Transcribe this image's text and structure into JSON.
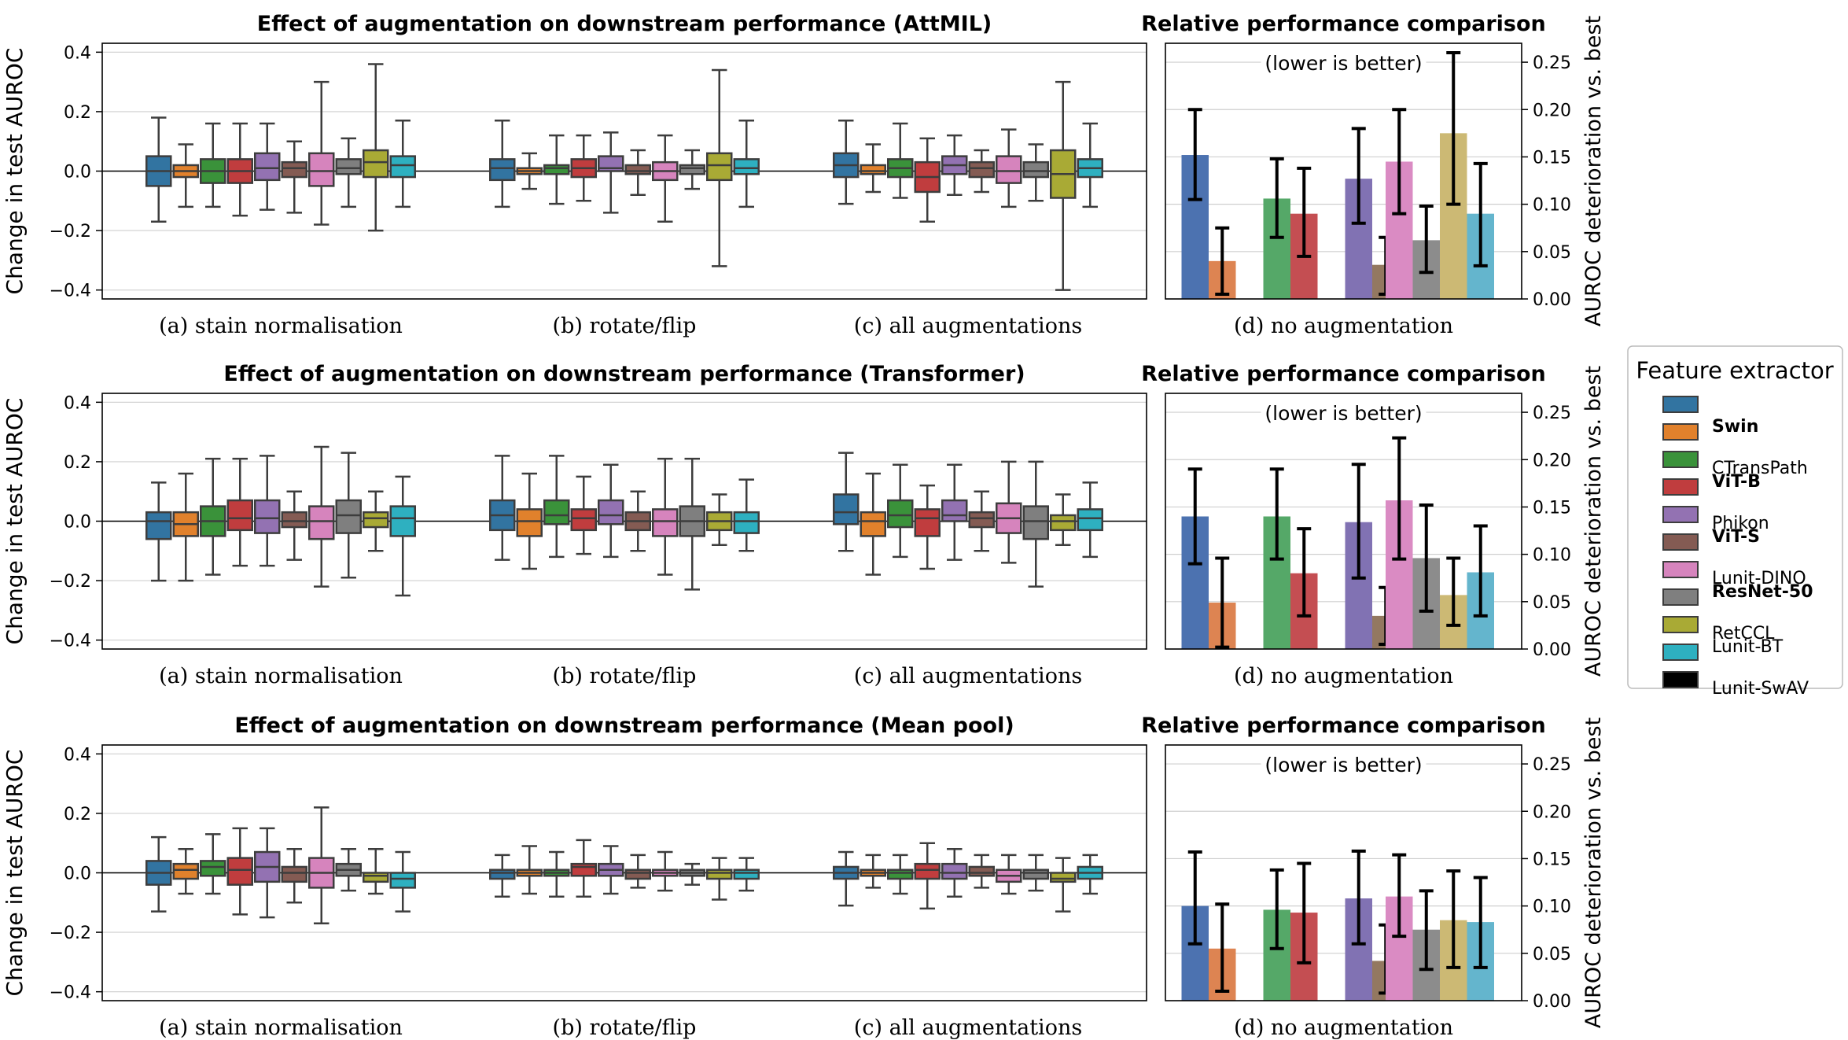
{
  "colors": [
    "#3274a1",
    "#e1812c",
    "#3a923a",
    "#c03d3e",
    "#9372b2",
    "#845b53",
    "#d684bd",
    "#7f7f7f",
    "#a9aa35",
    "#2eb0c0"
  ],
  "bar_colors": [
    "#4c72b0",
    "#dd8452",
    "#55a868",
    "#c44e52",
    "#8172b3",
    "#937860",
    "#da8bc3",
    "#8c8c8c",
    "#ccb974",
    "#64b5cd"
  ],
  "legend": {
    "title": "Feature extractor",
    "items": [
      {
        "label": "",
        "bold": false
      },
      {
        "label": "Swin",
        "bold": true
      },
      {
        "label": "CTransPath",
        "bold": false
      },
      {
        "label": "ViT-B",
        "bold": true
      },
      {
        "label": "Phikon",
        "bold": false
      },
      {
        "label": "ViT-S",
        "bold": true
      },
      {
        "label": "Lunit-DINO",
        "bold": false
      },
      {
        "label": "ResNet-50",
        "bold": true
      },
      {
        "label": "RetCCL",
        "bold": false
      },
      {
        "label": "Lunit-BT",
        "bold": false
      },
      {
        "label": "Lunit-SwAV",
        "bold": false
      }
    ]
  },
  "chart_data": [
    {
      "type": "box",
      "title": "Effect of augmentation on downstream performance (AttMIL)",
      "ylabel": "Change in test AUROC",
      "ylim": [
        -0.43,
        0.43
      ],
      "yticks": [
        -0.4,
        -0.2,
        0.0,
        0.2,
        0.4
      ],
      "ytick_labels": [
        "−0.4",
        "−0.2",
        "0.0",
        "0.2",
        "0.4"
      ],
      "categories": [
        "(a) stain normalisation",
        "(b) rotate/flip",
        "(c) all augmentations"
      ],
      "boxes": [
        [
          [
            -0.17,
            -0.05,
            0.0,
            0.05,
            0.18
          ],
          [
            -0.12,
            -0.02,
            0.0,
            0.02,
            0.09
          ],
          [
            -0.12,
            -0.04,
            0.0,
            0.04,
            0.16
          ],
          [
            -0.15,
            -0.04,
            0.0,
            0.04,
            0.16
          ],
          [
            -0.13,
            -0.03,
            0.01,
            0.06,
            0.16
          ],
          [
            -0.14,
            -0.02,
            0.01,
            0.03,
            0.1
          ],
          [
            -0.18,
            -0.05,
            0.0,
            0.06,
            0.3
          ],
          [
            -0.12,
            -0.01,
            0.01,
            0.04,
            0.11
          ],
          [
            -0.2,
            -0.02,
            0.03,
            0.07,
            0.36
          ],
          [
            -0.12,
            -0.02,
            0.02,
            0.05,
            0.17
          ]
        ],
        [
          [
            -0.12,
            -0.03,
            0.01,
            0.04,
            0.17
          ],
          [
            -0.06,
            -0.01,
            0.0,
            0.01,
            0.06
          ],
          [
            -0.11,
            -0.01,
            0.01,
            0.02,
            0.12
          ],
          [
            -0.1,
            -0.02,
            0.01,
            0.04,
            0.12
          ],
          [
            -0.14,
            0.0,
            0.01,
            0.05,
            0.13
          ],
          [
            -0.08,
            -0.01,
            0.0,
            0.02,
            0.07
          ],
          [
            -0.17,
            -0.03,
            0.0,
            0.03,
            0.12
          ],
          [
            -0.06,
            -0.01,
            0.01,
            0.02,
            0.07
          ],
          [
            -0.32,
            -0.03,
            0.02,
            0.06,
            0.34
          ],
          [
            -0.12,
            -0.01,
            0.01,
            0.04,
            0.17
          ]
        ],
        [
          [
            -0.11,
            -0.02,
            0.02,
            0.06,
            0.17
          ],
          [
            -0.07,
            -0.01,
            0.0,
            0.02,
            0.09
          ],
          [
            -0.09,
            -0.02,
            0.01,
            0.04,
            0.16
          ],
          [
            -0.17,
            -0.07,
            -0.02,
            0.03,
            0.11
          ],
          [
            -0.08,
            -0.01,
            0.02,
            0.05,
            0.12
          ],
          [
            -0.07,
            -0.02,
            0.01,
            0.03,
            0.07
          ],
          [
            -0.12,
            -0.04,
            0.0,
            0.05,
            0.14
          ],
          [
            -0.1,
            -0.02,
            0.0,
            0.03,
            0.09
          ],
          [
            -0.4,
            -0.09,
            -0.01,
            0.07,
            0.3
          ],
          [
            -0.12,
            -0.02,
            0.01,
            0.04,
            0.16
          ]
        ]
      ]
    },
    {
      "type": "bar",
      "title": "Relative performance comparison",
      "annotation": "(lower is better)",
      "xlabel": "(d) no augmentation",
      "ylabel": "AUROC deterioration vs. best",
      "ylim": [
        0.0,
        0.27
      ],
      "yticks": [
        0.0,
        0.05,
        0.1,
        0.15,
        0.2,
        0.25
      ],
      "ytick_labels": [
        "0.00",
        "0.05",
        "0.10",
        "0.15",
        "0.20",
        "0.25"
      ],
      "values": [
        0.152,
        0.04,
        0.106,
        0.09,
        0.127,
        0.036,
        0.145,
        0.062,
        0.175,
        0.09
      ],
      "err_low": [
        0.105,
        0.005,
        0.065,
        0.045,
        0.08,
        0.005,
        0.09,
        0.028,
        0.1,
        0.035
      ],
      "err_high": [
        0.2,
        0.075,
        0.148,
        0.138,
        0.18,
        0.065,
        0.2,
        0.098,
        0.26,
        0.143
      ]
    },
    {
      "type": "box",
      "title": "Effect of augmentation on downstream performance (Transformer)",
      "ylabel": "Change in test AUROC",
      "ylim": [
        -0.43,
        0.43
      ],
      "yticks": [
        -0.4,
        -0.2,
        0.0,
        0.2,
        0.4
      ],
      "ytick_labels": [
        "−0.4",
        "−0.2",
        "0.0",
        "0.2",
        "0.4"
      ],
      "categories": [
        "(a) stain normalisation",
        "(b) rotate/flip",
        "(c) all augmentations"
      ],
      "boxes": [
        [
          [
            -0.2,
            -0.06,
            0.0,
            0.03,
            0.13
          ],
          [
            -0.2,
            -0.05,
            -0.01,
            0.03,
            0.16
          ],
          [
            -0.18,
            -0.05,
            0.0,
            0.05,
            0.21
          ],
          [
            -0.15,
            -0.03,
            0.01,
            0.07,
            0.21
          ],
          [
            -0.15,
            -0.04,
            0.01,
            0.07,
            0.22
          ],
          [
            -0.13,
            -0.02,
            0.0,
            0.03,
            0.1
          ],
          [
            -0.22,
            -0.06,
            0.0,
            0.05,
            0.25
          ],
          [
            -0.19,
            -0.04,
            0.02,
            0.07,
            0.23
          ],
          [
            -0.1,
            -0.02,
            0.01,
            0.03,
            0.1
          ],
          [
            -0.25,
            -0.05,
            0.01,
            0.05,
            0.15
          ]
        ],
        [
          [
            -0.13,
            -0.03,
            0.02,
            0.07,
            0.22
          ],
          [
            -0.16,
            -0.05,
            0.0,
            0.04,
            0.16
          ],
          [
            -0.12,
            -0.01,
            0.02,
            0.07,
            0.22
          ],
          [
            -0.11,
            -0.03,
            0.01,
            0.04,
            0.15
          ],
          [
            -0.12,
            -0.01,
            0.02,
            0.07,
            0.19
          ],
          [
            -0.1,
            -0.03,
            0.0,
            0.03,
            0.1
          ],
          [
            -0.18,
            -0.05,
            0.0,
            0.04,
            0.21
          ],
          [
            -0.23,
            -0.05,
            0.0,
            0.05,
            0.21
          ],
          [
            -0.08,
            -0.03,
            0.0,
            0.03,
            0.09
          ],
          [
            -0.1,
            -0.04,
            0.0,
            0.03,
            0.14
          ]
        ],
        [
          [
            -0.1,
            -0.01,
            0.03,
            0.09,
            0.23
          ],
          [
            -0.18,
            -0.05,
            0.0,
            0.03,
            0.16
          ],
          [
            -0.12,
            -0.02,
            0.02,
            0.07,
            0.19
          ],
          [
            -0.16,
            -0.05,
            0.01,
            0.04,
            0.12
          ],
          [
            -0.13,
            0.0,
            0.02,
            0.07,
            0.19
          ],
          [
            -0.1,
            -0.02,
            0.01,
            0.03,
            0.1
          ],
          [
            -0.14,
            -0.04,
            0.01,
            0.06,
            0.2
          ],
          [
            -0.22,
            -0.06,
            0.0,
            0.05,
            0.2
          ],
          [
            -0.08,
            -0.03,
            0.0,
            0.02,
            0.09
          ],
          [
            -0.12,
            -0.03,
            0.01,
            0.04,
            0.13
          ]
        ]
      ]
    },
    {
      "type": "bar",
      "title": "Relative performance comparison",
      "annotation": "(lower is better)",
      "xlabel": "(d) no augmentation",
      "ylabel": "AUROC deterioration vs. best",
      "ylim": [
        0.0,
        0.27
      ],
      "yticks": [
        0.0,
        0.05,
        0.1,
        0.15,
        0.2,
        0.25
      ],
      "ytick_labels": [
        "0.00",
        "0.05",
        "0.10",
        "0.15",
        "0.20",
        "0.25"
      ],
      "values": [
        0.14,
        0.049,
        0.14,
        0.08,
        0.134,
        0.035,
        0.157,
        0.096,
        0.057,
        0.081
      ],
      "err_low": [
        0.09,
        0.002,
        0.095,
        0.035,
        0.075,
        0.005,
        0.095,
        0.04,
        0.025,
        0.035
      ],
      "err_high": [
        0.19,
        0.096,
        0.19,
        0.127,
        0.195,
        0.065,
        0.223,
        0.152,
        0.096,
        0.13
      ]
    },
    {
      "type": "box",
      "title": "Effect of augmentation on downstream performance (Mean pool)",
      "ylabel": "Change in test AUROC",
      "ylim": [
        -0.43,
        0.43
      ],
      "yticks": [
        -0.4,
        -0.2,
        0.0,
        0.2,
        0.4
      ],
      "ytick_labels": [
        "−0.4",
        "−0.2",
        "0.0",
        "0.2",
        "0.4"
      ],
      "categories": [
        "(a) stain normalisation",
        "(b) rotate/flip",
        "(c) all augmentations"
      ],
      "boxes": [
        [
          [
            -0.13,
            -0.04,
            0.0,
            0.04,
            0.12
          ],
          [
            -0.07,
            -0.02,
            0.01,
            0.03,
            0.08
          ],
          [
            -0.07,
            -0.01,
            0.02,
            0.04,
            0.13
          ],
          [
            -0.14,
            -0.04,
            0.01,
            0.05,
            0.15
          ],
          [
            -0.15,
            -0.03,
            0.02,
            0.07,
            0.15
          ],
          [
            -0.1,
            -0.03,
            0.0,
            0.02,
            0.08
          ],
          [
            -0.17,
            -0.05,
            0.0,
            0.05,
            0.22
          ],
          [
            -0.06,
            -0.01,
            0.01,
            0.03,
            0.08
          ],
          [
            -0.07,
            -0.03,
            -0.01,
            0.0,
            0.08
          ],
          [
            -0.13,
            -0.05,
            -0.02,
            0.0,
            0.07
          ]
        ],
        [
          [
            -0.08,
            -0.02,
            0.0,
            0.01,
            0.06
          ],
          [
            -0.07,
            -0.01,
            0.0,
            0.01,
            0.09
          ],
          [
            -0.08,
            -0.01,
            0.0,
            0.01,
            0.07
          ],
          [
            -0.08,
            -0.01,
            0.02,
            0.03,
            0.11
          ],
          [
            -0.07,
            -0.01,
            0.01,
            0.03,
            0.09
          ],
          [
            -0.05,
            -0.02,
            0.0,
            0.01,
            0.06
          ],
          [
            -0.06,
            -0.01,
            0.0,
            0.01,
            0.07
          ],
          [
            -0.04,
            -0.01,
            0.0,
            0.01,
            0.03
          ],
          [
            -0.09,
            -0.02,
            0.0,
            0.01,
            0.05
          ],
          [
            -0.06,
            -0.02,
            0.0,
            0.01,
            0.05
          ]
        ],
        [
          [
            -0.11,
            -0.02,
            0.0,
            0.02,
            0.07
          ],
          [
            -0.05,
            -0.01,
            0.0,
            0.01,
            0.06
          ],
          [
            -0.07,
            -0.02,
            0.0,
            0.01,
            0.06
          ],
          [
            -0.12,
            -0.02,
            0.01,
            0.03,
            0.1
          ],
          [
            -0.08,
            -0.02,
            0.0,
            0.03,
            0.08
          ],
          [
            -0.05,
            -0.01,
            0.0,
            0.02,
            0.06
          ],
          [
            -0.07,
            -0.03,
            -0.01,
            0.01,
            0.06
          ],
          [
            -0.06,
            -0.02,
            0.0,
            0.01,
            0.06
          ],
          [
            -0.13,
            -0.03,
            -0.02,
            0.0,
            0.05
          ],
          [
            -0.07,
            -0.02,
            0.0,
            0.02,
            0.06
          ]
        ]
      ]
    },
    {
      "type": "bar",
      "title": "Relative performance comparison",
      "annotation": "(lower is better)",
      "xlabel": "(d) no augmentation",
      "ylabel": "AUROC deterioration vs. best",
      "ylim": [
        0.0,
        0.27
      ],
      "yticks": [
        0.0,
        0.05,
        0.1,
        0.15,
        0.2,
        0.25
      ],
      "ytick_labels": [
        "0.00",
        "0.05",
        "0.10",
        "0.15",
        "0.20",
        "0.25"
      ],
      "values": [
        0.1,
        0.055,
        0.096,
        0.093,
        0.108,
        0.042,
        0.11,
        0.075,
        0.085,
        0.083
      ],
      "err_low": [
        0.06,
        0.01,
        0.055,
        0.04,
        0.06,
        0.008,
        0.068,
        0.033,
        0.035,
        0.035
      ],
      "err_high": [
        0.157,
        0.102,
        0.138,
        0.145,
        0.158,
        0.08,
        0.154,
        0.116,
        0.137,
        0.13
      ]
    }
  ]
}
